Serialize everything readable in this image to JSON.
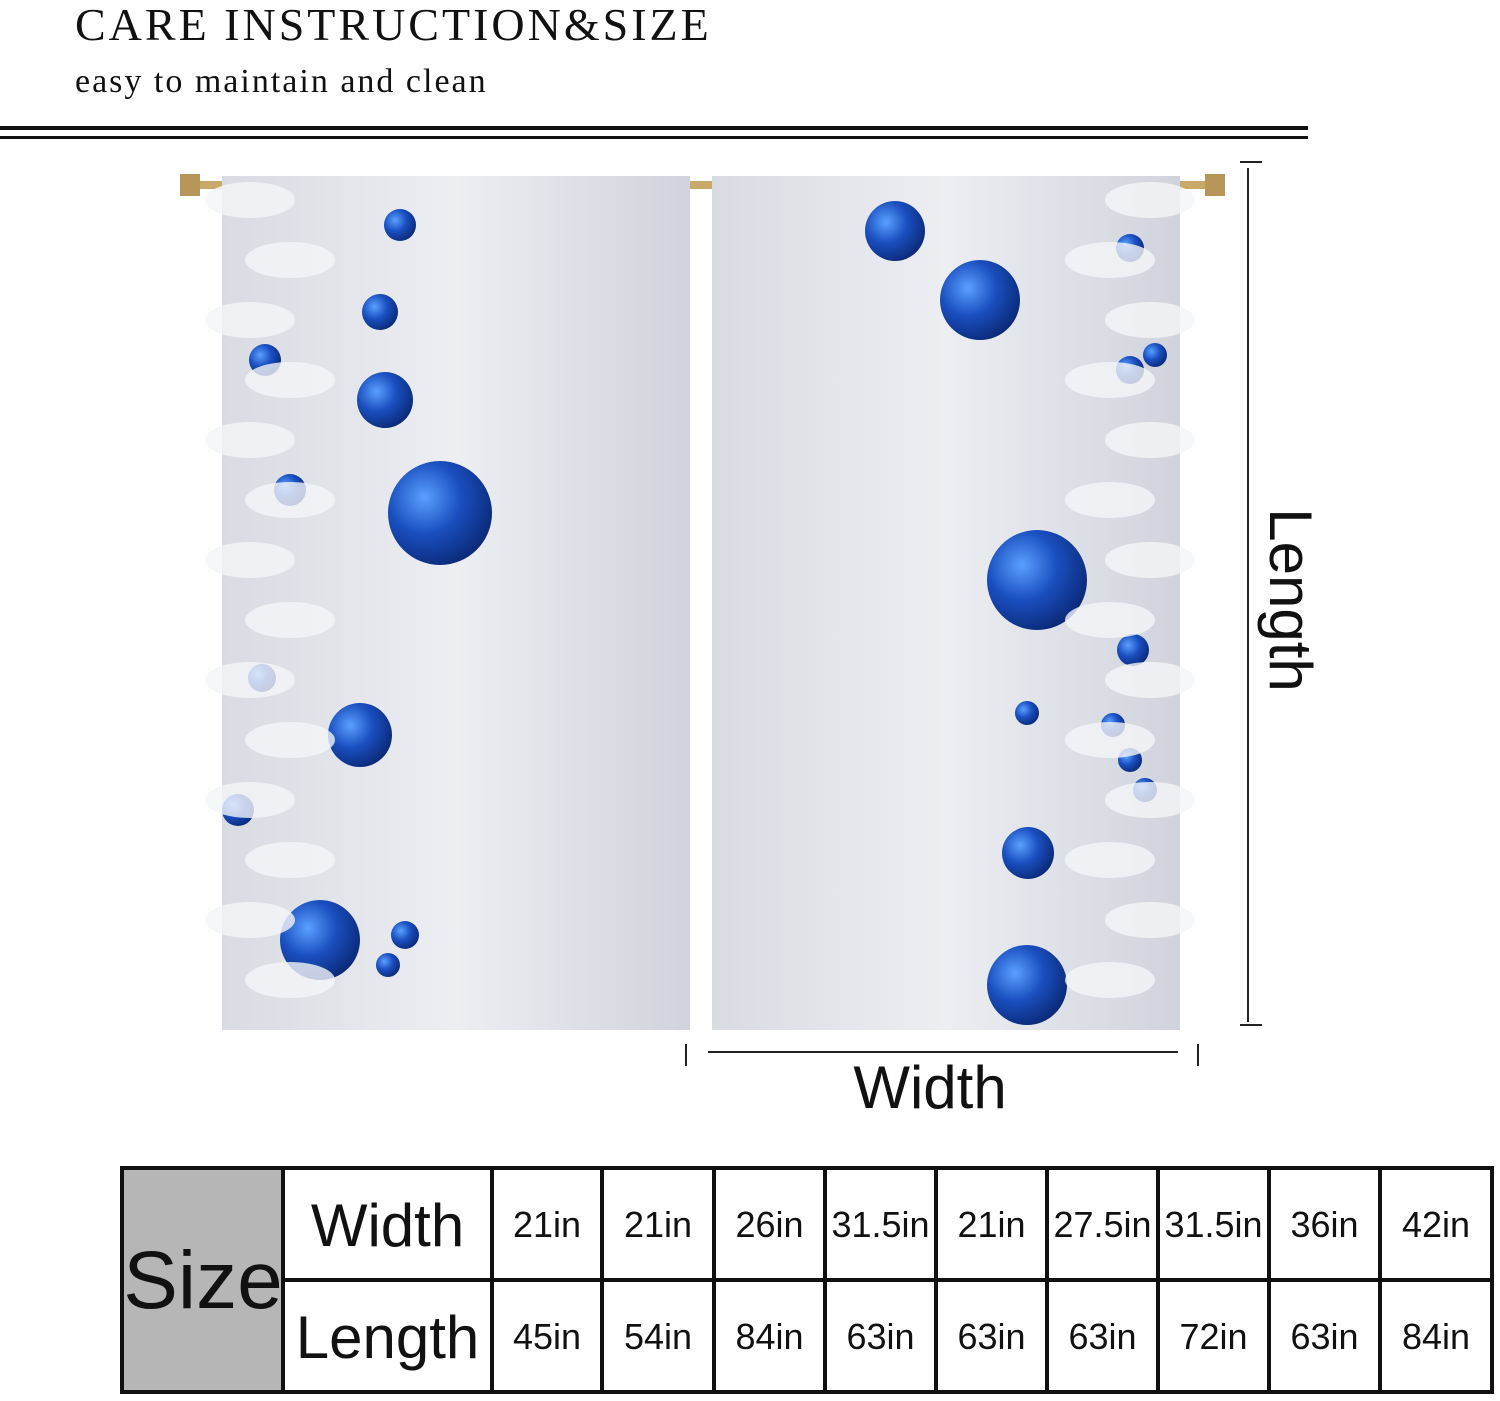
{
  "header": {
    "title": "CARE INSTRUCTION&SIZE",
    "subtitle": "easy to maintain and clean"
  },
  "diagram": {
    "length_label": "Length",
    "width_label": "Width"
  },
  "table": {
    "header": "Size",
    "rows": [
      [
        "Width",
        "21in",
        "21in",
        "26in",
        "31.5in",
        "21in",
        "27.5in",
        "31.5in",
        "36in",
        "42in"
      ],
      [
        "Length",
        "45in",
        "54in",
        "84in",
        "63in",
        "63in",
        "63in",
        "72in",
        "63in",
        "84in"
      ]
    ]
  }
}
